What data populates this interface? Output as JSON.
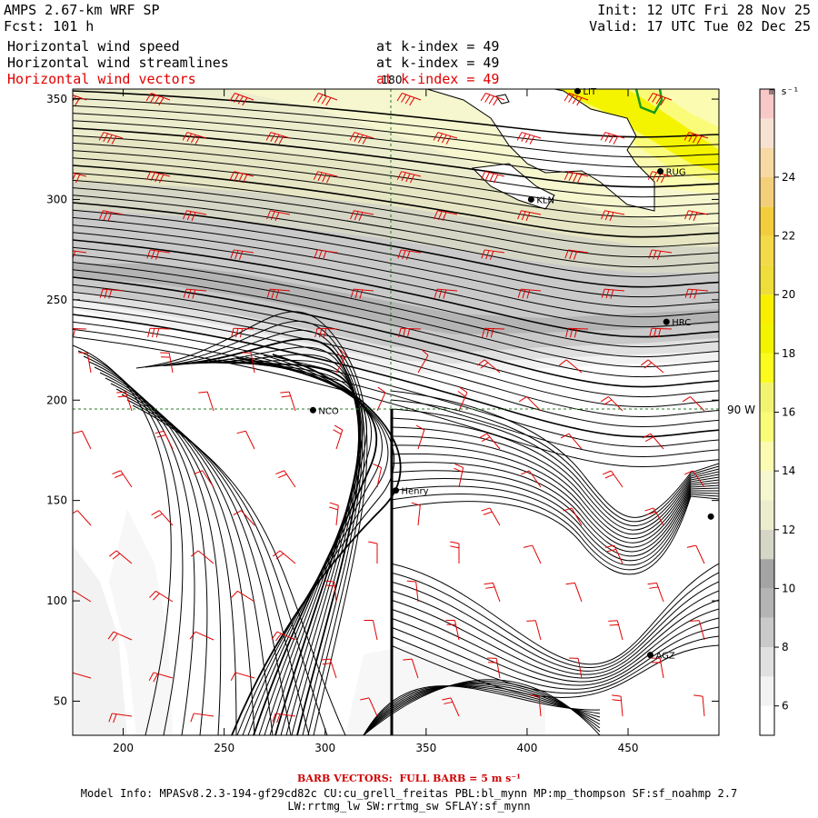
{
  "header": {
    "model": "AMPS 2.67-km WRF SP",
    "forecast": "Fcst: 101 h",
    "init": "Init: 12 UTC Fri 28 Nov 25",
    "valid": "Valid: 17 UTC Tue 02 Dec 25",
    "lines": [
      {
        "label": "Horizontal wind speed",
        "level": "at k-index = 49",
        "color": "#000000"
      },
      {
        "label": "Horizontal wind streamlines",
        "level": "at k-index = 49",
        "color": "#000000"
      },
      {
        "label": "Horizontal wind vectors",
        "level": "at k-index = 49",
        "color": "#e00000"
      }
    ]
  },
  "map": {
    "x_ticks": [
      "200",
      "250",
      "300",
      "350",
      "400",
      "450"
    ],
    "y_ticks": [
      "50",
      "100",
      "150",
      "200",
      "250",
      "300",
      "350"
    ],
    "meridian_label": "180",
    "parallel_label": "90 W",
    "stations": [
      {
        "name": "KLN",
        "x": 402,
        "y": 300
      },
      {
        "name": "RUG",
        "x": 466,
        "y": 314
      },
      {
        "name": "LIT",
        "x": 425,
        "y": 354
      },
      {
        "name": "HRC",
        "x": 469,
        "y": 239
      },
      {
        "name": "NCO",
        "x": 294,
        "y": 195
      },
      {
        "name": "Henry",
        "x": 335,
        "y": 155
      },
      {
        "name": "AGZ",
        "x": 461,
        "y": 73
      },
      {
        "name": "",
        "x": 491,
        "y": 142
      }
    ]
  },
  "colorbar": {
    "unit": "m s⁻¹",
    "labels": [
      "24",
      "22",
      "20",
      "18",
      "16",
      "14",
      "12",
      "10",
      "8",
      "6"
    ],
    "bins": [
      {
        "min": 5,
        "color": "#ffffff"
      },
      {
        "min": 6,
        "color": "#f2f2f2"
      },
      {
        "min": 7,
        "color": "#e0e0e0"
      },
      {
        "min": 8,
        "color": "#c9c9c9"
      },
      {
        "min": 9,
        "color": "#b4b4b4"
      },
      {
        "min": 10,
        "color": "#a4a4a4"
      },
      {
        "min": 11,
        "color": "#d6d6c6"
      },
      {
        "min": 12,
        "color": "#ecedcc"
      },
      {
        "min": 13,
        "color": "#f6f6cf"
      },
      {
        "min": 14,
        "color": "#fbfbb2"
      },
      {
        "min": 15,
        "color": "#fbfb7a"
      },
      {
        "min": 16,
        "color": "#f3f372"
      },
      {
        "min": 17,
        "color": "#fbfb1e"
      },
      {
        "min": 18,
        "color": "#f4f400"
      },
      {
        "min": 19,
        "color": "#f8f000"
      },
      {
        "min": 20,
        "color": "#eedd3a"
      },
      {
        "min": 21,
        "color": "#f4d948"
      },
      {
        "min": 22,
        "color": "#f3cd3c"
      },
      {
        "min": 23,
        "color": "#f3cf7a"
      },
      {
        "min": 24,
        "color": "#f8d9a4"
      },
      {
        "min": 25,
        "color": "#f7e1d0"
      },
      {
        "min": 26,
        "color": "#f8c8c8"
      }
    ]
  },
  "footer": {
    "barb": "BARB VECTORS:  FULL BARB = 5 m s⁻¹",
    "model_info": "Model Info: MPASv8.2.3-194-gf29cd82c CU:cu_grell_freitas PBL:bl_mynn MP:mp_thompson SF:sf_noahmp 2.7",
    "model_info2": "LW:rrtmg_lw SW:rrtmg_sw SFLAY:sf_mynn"
  },
  "colors": {
    "barb": "#e00000",
    "coast": "#000000",
    "grid": "#2a7a2a",
    "ice": "#ffffff",
    "terrain_line": "#1a9a1a"
  }
}
